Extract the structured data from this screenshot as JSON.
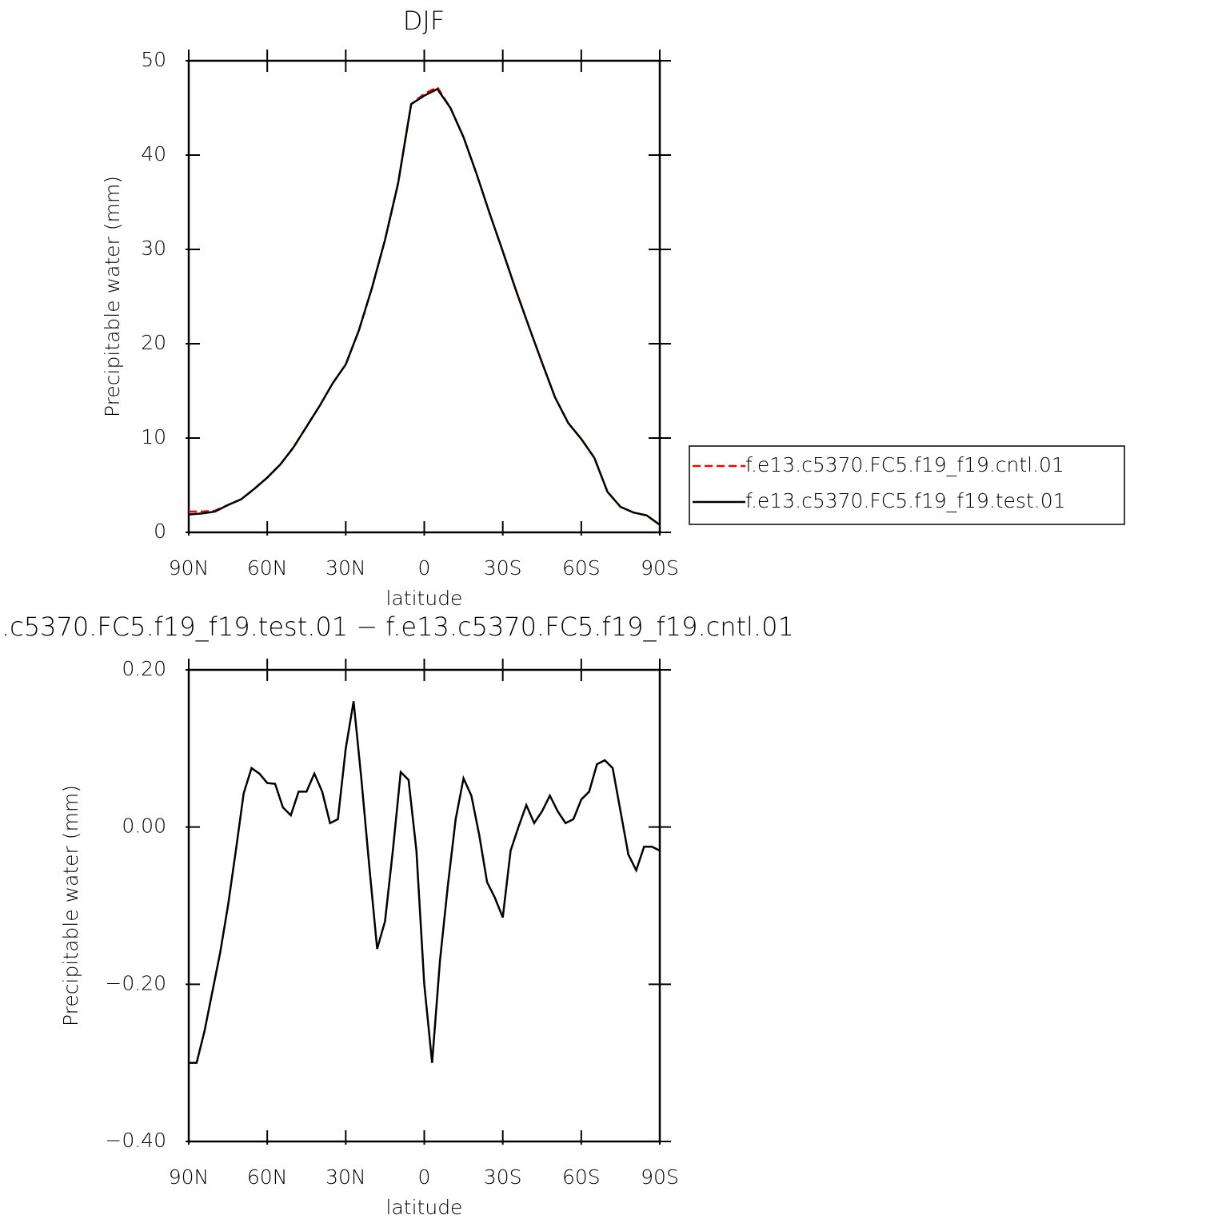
{
  "chart_data": [
    {
      "type": "line",
      "title": "DJF",
      "xlabel": "latitude",
      "ylabel": "Precipitable water (mm)",
      "x": [
        90,
        85,
        80,
        75,
        70,
        65,
        60,
        55,
        50,
        45,
        40,
        35,
        30,
        25,
        20,
        15,
        10,
        5,
        0,
        -5,
        -10,
        -15,
        -20,
        -25,
        -30,
        -35,
        -40,
        -45,
        -50,
        -55,
        -60,
        -65,
        -70,
        -75,
        -80,
        -85,
        -90
      ],
      "series": [
        {
          "name": "f.e13.c5370.FC5.f19_f19.cntl.01",
          "color": "#ff0000",
          "linestyle": "dashed",
          "values": [
            2.2,
            2.2,
            2.3,
            2.9,
            3.5,
            4.6,
            5.8,
            7.2,
            9.0,
            11.2,
            13.4,
            15.8,
            17.8,
            21.4,
            25.9,
            31.0,
            37.0,
            45.4,
            46.5,
            47.2,
            45.0,
            41.9,
            38.0,
            33.8,
            29.8,
            25.7,
            21.8,
            18.0,
            14.3,
            11.6,
            9.9,
            7.9,
            4.3,
            2.7,
            2.1,
            1.8,
            0.8
          ]
        },
        {
          "name": "f.e13.c5370.FC5.f19_f19.test.01",
          "color": "#000000",
          "linestyle": "solid",
          "values": [
            1.9,
            2.0,
            2.2,
            2.9,
            3.5,
            4.6,
            5.8,
            7.2,
            9.0,
            11.2,
            13.4,
            15.8,
            17.8,
            21.4,
            25.9,
            31.0,
            37.0,
            45.4,
            46.3,
            47.0,
            45.0,
            41.9,
            38.0,
            33.8,
            29.8,
            25.7,
            21.8,
            18.0,
            14.3,
            11.6,
            9.9,
            7.9,
            4.3,
            2.7,
            2.1,
            1.8,
            0.8
          ]
        }
      ],
      "xlim": [
        90,
        -90
      ],
      "xticks": [
        {
          "value": 90,
          "label": "90N"
        },
        {
          "value": 60,
          "label": "60N"
        },
        {
          "value": 30,
          "label": "30N"
        },
        0,
        {
          "value": -30,
          "label": "30S"
        },
        {
          "value": -60,
          "label": "60S"
        },
        {
          "value": -90,
          "label": "90S"
        }
      ],
      "ylim": [
        0,
        50
      ],
      "yticks": [
        0,
        10,
        20,
        30,
        40,
        50
      ],
      "legend": "right"
    },
    {
      "type": "line",
      "title": ".c5370.FC5.f19_f19.test.01 − f.e13.c5370.FC5.f19_f19.cntl.01",
      "xlabel": "latitude",
      "ylabel": "Precipitable water (mm)",
      "x": [
        90,
        87,
        84,
        81,
        78,
        75,
        72,
        69,
        66,
        63,
        60,
        57,
        54,
        51,
        48,
        45,
        42,
        39,
        36,
        33,
        30,
        27,
        24,
        21,
        18,
        15,
        12,
        9,
        6,
        3,
        0,
        -3,
        -6,
        -9,
        -12,
        -15,
        -18,
        -21,
        -24,
        -27,
        -30,
        -33,
        -36,
        -39,
        -42,
        -45,
        -48,
        -51,
        -54,
        -57,
        -60,
        -63,
        -66,
        -69,
        -72,
        -75,
        -78,
        -81,
        -84,
        -87,
        -90
      ],
      "series": [
        {
          "color": "#000000",
          "linestyle": "solid",
          "values": [
            -0.3,
            -0.3,
            -0.26,
            -0.21,
            -0.16,
            -0.1,
            -0.03,
            0.043,
            0.075,
            0.068,
            0.056,
            0.055,
            0.025,
            0.015,
            0.045,
            0.045,
            0.068,
            0.045,
            0.005,
            0.01,
            0.1,
            0.16,
            0.06,
            -0.05,
            -0.155,
            -0.12,
            -0.03,
            0.07,
            0.06,
            -0.03,
            -0.2,
            -0.3,
            -0.17,
            -0.075,
            0.01,
            0.062,
            0.04,
            -0.01,
            -0.07,
            -0.09,
            -0.115,
            -0.03,
            0.0,
            0.028,
            0.005,
            0.02,
            0.04,
            0.02,
            0.005,
            0.01,
            0.035,
            0.045,
            0.08,
            0.085,
            0.075,
            0.02,
            -0.035,
            -0.055,
            -0.025,
            -0.025,
            -0.03
          ]
        }
      ],
      "xlim": [
        90,
        -90
      ],
      "xticks": [
        {
          "value": 90,
          "label": "90N"
        },
        {
          "value": 60,
          "label": "60N"
        },
        {
          "value": 30,
          "label": "30N"
        },
        0,
        {
          "value": -30,
          "label": "30S"
        },
        {
          "value": -60,
          "label": "60S"
        },
        {
          "value": -90,
          "label": "90S"
        }
      ],
      "ylim": [
        -0.4,
        0.2
      ],
      "yticks": [
        {
          "value": -0.4,
          "label": "−0.40"
        },
        {
          "value": -0.2,
          "label": "−0.20"
        },
        {
          "value": 0,
          "label": "0.00"
        },
        {
          "value": 0.2,
          "label": "0.20"
        }
      ]
    }
  ]
}
